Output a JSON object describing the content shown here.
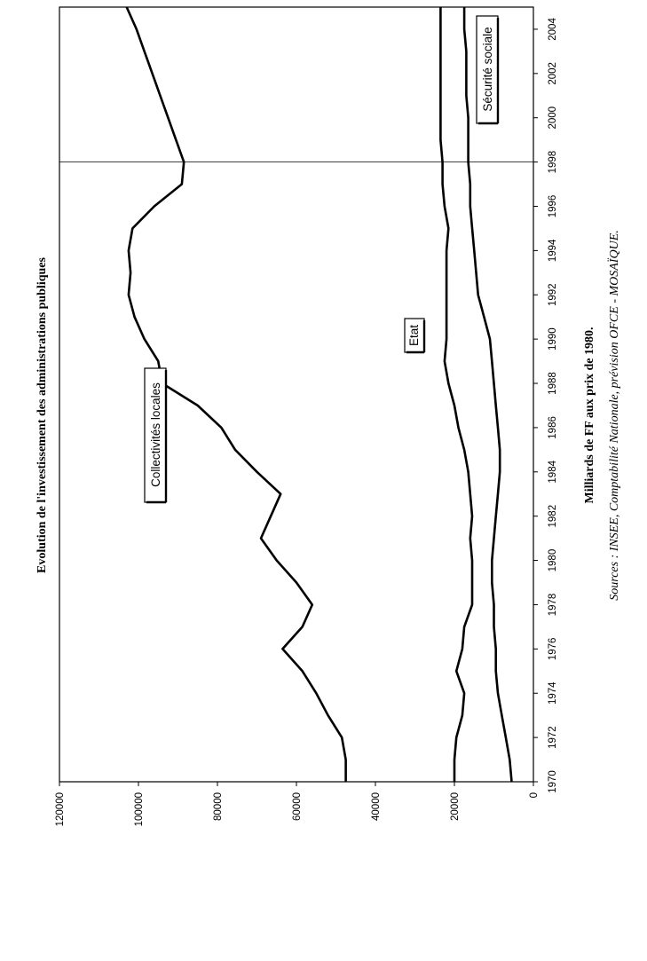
{
  "chart_data": {
    "type": "line",
    "title": "Evolution de l'investissement des administrations publiques",
    "xlabel": "Milliards de FF aux prix de 1980.",
    "source": "Sources : INSEE, Comptabilité Nationale, prévision OFCE - MOSAÏQUE.",
    "x_ticks": [
      "1970",
      "1972",
      "1974",
      "1976",
      "1978",
      "1980",
      "1982",
      "1984",
      "1986",
      "1988",
      "1990",
      "1992",
      "1994",
      "1996",
      "1998",
      "2000",
      "2002",
      "2004"
    ],
    "y_ticks": [
      "0",
      "20000",
      "40000",
      "60000",
      "80000",
      "100000",
      "120000"
    ],
    "xlim": [
      1970,
      2005
    ],
    "ylim": [
      0,
      120000
    ],
    "forecast_start": 1998,
    "grid": false,
    "x": [
      1970,
      1971,
      1972,
      1973,
      1974,
      1975,
      1976,
      1977,
      1978,
      1979,
      1980,
      1981,
      1982,
      1983,
      1984,
      1985,
      1986,
      1987,
      1988,
      1989,
      1990,
      1991,
      1992,
      1993,
      1994,
      1995,
      1996,
      1997,
      1998,
      1999,
      2000,
      2001,
      2002,
      2003,
      2004,
      2005
    ],
    "series": [
      {
        "name": "Collectivités locales",
        "values": [
          47500,
          47500,
          48500,
          52000,
          55000,
          58500,
          63500,
          58500,
          56000,
          60000,
          65000,
          69000,
          66500,
          64000,
          70000,
          75500,
          79000,
          85000,
          94000,
          95000,
          98500,
          101000,
          102500,
          102000,
          102500,
          101500,
          96000,
          89000,
          88500,
          90500,
          92500,
          94500,
          96500,
          98500,
          100500,
          103000
        ]
      },
      {
        "name": "Etat",
        "values": [
          20000,
          20000,
          19500,
          18000,
          17500,
          19500,
          18000,
          17500,
          15500,
          15500,
          15500,
          16000,
          15500,
          16000,
          16500,
          17500,
          19000,
          20000,
          21500,
          22500,
          22000,
          22000,
          22000,
          22000,
          22000,
          21500,
          22500,
          23000,
          23000,
          23500,
          23500,
          23500,
          23500,
          23500,
          23500,
          23500
        ]
      },
      {
        "name": "Sécurité sociale",
        "values": [
          5500,
          6000,
          7000,
          8000,
          9000,
          9500,
          9500,
          10000,
          10000,
          10500,
          10500,
          10000,
          9500,
          9000,
          8500,
          8500,
          9000,
          9500,
          10000,
          10500,
          11000,
          12500,
          14000,
          14500,
          15000,
          15500,
          16000,
          16000,
          16500,
          16500,
          16500,
          17000,
          17000,
          17000,
          17500,
          17500
        ]
      }
    ]
  }
}
